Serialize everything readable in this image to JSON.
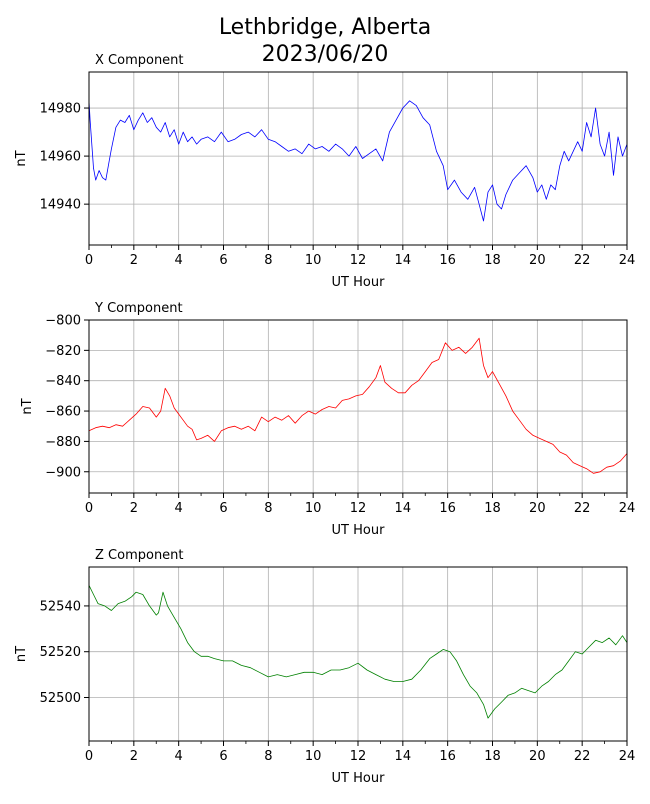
{
  "title": {
    "line1": "Lethbridge, Alberta",
    "line2": "2023/06/20"
  },
  "chart_data": [
    {
      "type": "line",
      "subtitle": "X Component",
      "xlabel": "UT Hour",
      "ylabel": "nT",
      "color": "#0000ff",
      "xlim": [
        0,
        24
      ],
      "ylim": [
        14923,
        14995
      ],
      "xticks": [
        0,
        2,
        4,
        6,
        8,
        10,
        12,
        14,
        16,
        18,
        20,
        22,
        24
      ],
      "yticks": [
        14940,
        14960,
        14980
      ],
      "grid": true,
      "series": [
        {
          "x": [
            0,
            0.05,
            0.2,
            0.3,
            0.45,
            0.6,
            0.75,
            0.9,
            1.0,
            1.2,
            1.4,
            1.6,
            1.8,
            2.0,
            2.2,
            2.4,
            2.6,
            2.8,
            3.0,
            3.2,
            3.4,
            3.6,
            3.8,
            4.0,
            4.2,
            4.4,
            4.6,
            4.8,
            5.0,
            5.3,
            5.6,
            5.9,
            6.2,
            6.5,
            6.8,
            7.1,
            7.4,
            7.7,
            8.0,
            8.3,
            8.6,
            8.9,
            9.2,
            9.5,
            9.8,
            10.1,
            10.4,
            10.7,
            11.0,
            11.3,
            11.6,
            11.9,
            12.2,
            12.5,
            12.8,
            13.1,
            13.4,
            13.7,
            14.0,
            14.3,
            14.6,
            14.9,
            15.2,
            15.5,
            15.8,
            16.0,
            16.3,
            16.6,
            16.9,
            17.2,
            17.4,
            17.6,
            17.8,
            18.0,
            18.2,
            18.4,
            18.6,
            18.9,
            19.2,
            19.5,
            19.8,
            20.0,
            20.2,
            20.4,
            20.6,
            20.8,
            21.0,
            21.2,
            21.4,
            21.6,
            21.8,
            22.0,
            22.2,
            22.4,
            22.6,
            22.8,
            23.0,
            23.2,
            23.4,
            23.6,
            23.8,
            24.0
          ],
          "y": [
            14983,
            14975,
            14955,
            14950,
            14954,
            14951,
            14950,
            14958,
            14963,
            14972,
            14975,
            14974,
            14977,
            14971,
            14975,
            14978,
            14974,
            14976,
            14972,
            14970,
            14974,
            14968,
            14971,
            14965,
            14970,
            14966,
            14968,
            14965,
            14967,
            14968,
            14966,
            14970,
            14966,
            14967,
            14969,
            14970,
            14968,
            14971,
            14967,
            14966,
            14964,
            14962,
            14963,
            14961,
            14965,
            14963,
            14964,
            14962,
            14965,
            14963,
            14960,
            14964,
            14959,
            14961,
            14963,
            14958,
            14970,
            14975,
            14980,
            14983,
            14981,
            14976,
            14973,
            14962,
            14956,
            14946,
            14950,
            14945,
            14942,
            14947,
            14940,
            14933,
            14945,
            14948,
            14940,
            14938,
            14944,
            14950,
            14953,
            14956,
            14951,
            14945,
            14948,
            14942,
            14948,
            14946,
            14956,
            14962,
            14958,
            14962,
            14966,
            14962,
            14974,
            14968,
            14980,
            14965,
            14960,
            14970,
            14952,
            14968,
            14960,
            14965
          ]
        }
      ]
    },
    {
      "type": "line",
      "subtitle": "Y Component",
      "xlabel": "UT Hour",
      "ylabel": "nT",
      "color": "#ff0000",
      "xlim": [
        0,
        24
      ],
      "ylim": [
        -914,
        -800
      ],
      "xticks": [
        0,
        2,
        4,
        6,
        8,
        10,
        12,
        14,
        16,
        18,
        20,
        22,
        24
      ],
      "yticks": [
        -900,
        -880,
        -860,
        -840,
        -820,
        -800
      ],
      "grid": true,
      "series": [
        {
          "x": [
            0,
            0.3,
            0.6,
            0.9,
            1.2,
            1.5,
            1.8,
            2.1,
            2.4,
            2.7,
            3.0,
            3.2,
            3.4,
            3.6,
            3.8,
            4.0,
            4.2,
            4.4,
            4.6,
            4.8,
            5.0,
            5.3,
            5.6,
            5.9,
            6.2,
            6.5,
            6.8,
            7.1,
            7.4,
            7.7,
            8.0,
            8.3,
            8.6,
            8.9,
            9.2,
            9.5,
            9.8,
            10.1,
            10.4,
            10.7,
            11.0,
            11.3,
            11.6,
            11.9,
            12.2,
            12.5,
            12.8,
            13.0,
            13.2,
            13.5,
            13.8,
            14.1,
            14.4,
            14.7,
            15.0,
            15.3,
            15.6,
            15.9,
            16.2,
            16.5,
            16.8,
            17.1,
            17.4,
            17.6,
            17.8,
            18.0,
            18.3,
            18.6,
            18.9,
            19.2,
            19.5,
            19.8,
            20.1,
            20.4,
            20.7,
            21.0,
            21.3,
            21.6,
            21.9,
            22.2,
            22.5,
            22.8,
            23.1,
            23.4,
            23.7,
            24.0
          ],
          "y": [
            -873,
            -871,
            -870,
            -871,
            -869,
            -870,
            -866,
            -862,
            -857,
            -858,
            -864,
            -860,
            -845,
            -850,
            -858,
            -862,
            -866,
            -870,
            -872,
            -879,
            -878,
            -876,
            -880,
            -873,
            -871,
            -870,
            -872,
            -870,
            -873,
            -864,
            -867,
            -864,
            -866,
            -863,
            -868,
            -863,
            -860,
            -862,
            -859,
            -857,
            -858,
            -853,
            -852,
            -850,
            -849,
            -844,
            -838,
            -830,
            -841,
            -845,
            -848,
            -848,
            -843,
            -840,
            -834,
            -828,
            -826,
            -815,
            -820,
            -818,
            -822,
            -818,
            -812,
            -830,
            -838,
            -834,
            -842,
            -850,
            -860,
            -866,
            -872,
            -876,
            -878,
            -880,
            -882,
            -887,
            -889,
            -894,
            -896,
            -898,
            -901,
            -900,
            -897,
            -896,
            -893,
            -888
          ]
        }
      ]
    },
    {
      "type": "line",
      "subtitle": "Z Component",
      "xlabel": "UT Hour",
      "ylabel": "nT",
      "color": "#008000",
      "xlim": [
        0,
        24
      ],
      "ylim": [
        52481,
        52557
      ],
      "xticks": [
        0,
        2,
        4,
        6,
        8,
        10,
        12,
        14,
        16,
        18,
        20,
        22,
        24
      ],
      "yticks": [
        52500,
        52520,
        52540
      ],
      "grid": true,
      "series": [
        {
          "x": [
            0,
            0.2,
            0.4,
            0.7,
            1.0,
            1.3,
            1.6,
            1.9,
            2.1,
            2.4,
            2.7,
            3.0,
            3.1,
            3.3,
            3.5,
            3.8,
            4.1,
            4.4,
            4.7,
            5.0,
            5.3,
            5.6,
            6.0,
            6.4,
            6.8,
            7.2,
            7.6,
            8.0,
            8.4,
            8.8,
            9.2,
            9.6,
            10.0,
            10.4,
            10.8,
            11.2,
            11.6,
            12.0,
            12.4,
            12.8,
            13.2,
            13.6,
            14.0,
            14.4,
            14.8,
            15.2,
            15.5,
            15.8,
            16.1,
            16.4,
            16.7,
            17.0,
            17.3,
            17.6,
            17.8,
            18.1,
            18.4,
            18.7,
            19.0,
            19.3,
            19.6,
            19.9,
            20.2,
            20.5,
            20.8,
            21.1,
            21.4,
            21.7,
            22.0,
            22.3,
            22.6,
            22.9,
            23.2,
            23.5,
            23.8,
            24.0
          ],
          "y": [
            52549,
            52545,
            52541,
            52540,
            52538,
            52541,
            52542,
            52544,
            52546,
            52545,
            52540,
            52536,
            52537,
            52546,
            52540,
            52535,
            52530,
            52524,
            52520,
            52518,
            52518,
            52517,
            52516,
            52516,
            52514,
            52513,
            52511,
            52509,
            52510,
            52509,
            52510,
            52511,
            52511,
            52510,
            52512,
            52512,
            52513,
            52515,
            52512,
            52510,
            52508,
            52507,
            52507,
            52508,
            52512,
            52517,
            52519,
            52521,
            52520,
            52516,
            52510,
            52505,
            52502,
            52497,
            52491,
            52495,
            52498,
            52501,
            52502,
            52504,
            52503,
            52502,
            52505,
            52507,
            52510,
            52512,
            52516,
            52520,
            52519,
            52522,
            52525,
            52524,
            52526,
            52523,
            52527,
            52524
          ]
        }
      ]
    }
  ]
}
